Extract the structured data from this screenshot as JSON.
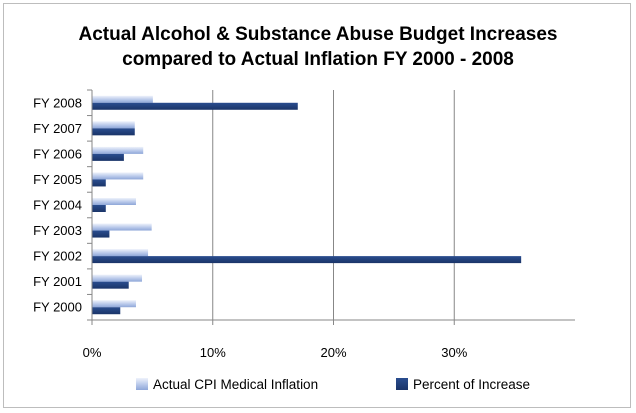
{
  "chart_data": {
    "type": "bar",
    "orientation": "horizontal",
    "title": "Actual Alcohol & Substance Abuse Budget Increases compared to Actual Inflation FY 2000 - 2008",
    "title_lines": [
      "Actual Alcohol & Substance Abuse Budget Increases",
      "compared to Actual Inflation FY 2000 - 2008"
    ],
    "xlabel": "",
    "ylabel": "",
    "categories": [
      "FY 2000",
      "FY 2001",
      "FY 2002",
      "FY 2003",
      "FY 2004",
      "FY 2005",
      "FY 2006",
      "FY 2007",
      "FY 2008"
    ],
    "series": [
      {
        "name": "Actual CPI Medical Inflation",
        "values": [
          3.6,
          4.1,
          4.6,
          4.9,
          3.6,
          4.2,
          4.2,
          3.5,
          5.0
        ],
        "color": "#a9bde3"
      },
      {
        "name": "Percent of Increase",
        "values": [
          2.3,
          3.0,
          35.5,
          1.4,
          1.1,
          1.1,
          2.6,
          3.5,
          17.0
        ],
        "color": "#1f3d7a"
      }
    ],
    "xlim": [
      0,
      40
    ],
    "xticks": [
      "0%",
      "10%",
      "20%",
      "30%"
    ],
    "xtick_values": [
      0,
      10,
      20,
      30
    ],
    "grid": true,
    "legend": "bottom",
    "colors": {
      "gridline": "#878787",
      "axis": "#878787",
      "frame": "#bdbdbd"
    }
  }
}
